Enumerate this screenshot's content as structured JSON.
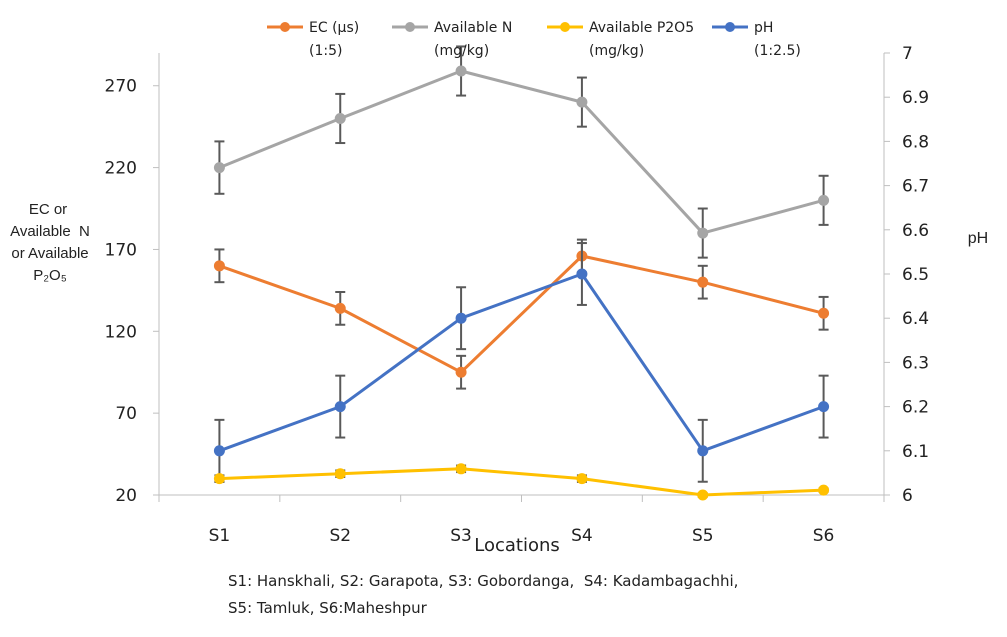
{
  "chart_data": {
    "type": "line",
    "categories": [
      "S1",
      "S2",
      "S3",
      "S4",
      "S5",
      "S6"
    ],
    "xlabel": "Locations",
    "ylabel_lines": [
      "EC or",
      "Available  N",
      "or Available",
      "P₂O₅"
    ],
    "y2label": "pH",
    "ylim": [
      20,
      290
    ],
    "yticks": [
      20,
      70,
      120,
      170,
      220,
      270
    ],
    "y2lim": [
      6,
      7
    ],
    "y2ticks": [
      "6",
      "6.1",
      "6.2",
      "6.3",
      "6.4",
      "6.5",
      "6.6",
      "6.7",
      "6.8",
      "6.9",
      "7"
    ],
    "grid": false,
    "legend_position": "top",
    "series": [
      {
        "name": "EC (µs)",
        "name_line2": "(1:5)",
        "axis": "left",
        "color": "#ED7D31",
        "values": [
          160,
          134,
          95,
          166,
          150,
          131
        ],
        "errors": [
          10,
          10,
          10,
          10,
          10,
          10
        ]
      },
      {
        "name": "Available N",
        "name_line2": "(mg/kg)",
        "axis": "left",
        "color": "#A5A5A5",
        "values": [
          220,
          250,
          279,
          260,
          180,
          200
        ],
        "errors": [
          16,
          15,
          15,
          15,
          15,
          15
        ]
      },
      {
        "name": "Available P2O5",
        "name_line2": "(mg/kg)",
        "axis": "left",
        "color": "#FFC000",
        "values": [
          30,
          33,
          36,
          30,
          20,
          23
        ],
        "errors": [
          2,
          2,
          2,
          2,
          1,
          1
        ]
      },
      {
        "name": "pH",
        "name_line2": "(1:2.5)",
        "axis": "right",
        "color": "#4472C4",
        "values": [
          6.1,
          6.2,
          6.4,
          6.5,
          6.1,
          6.2
        ],
        "errors": [
          0.07,
          0.07,
          0.07,
          0.07,
          0.07,
          0.07
        ]
      }
    ],
    "footnote_lines": [
      "S1: Hanskhali, S2: Garapota, S3: Gobordanga,  S4: Kadambagachhi,",
      "S5: Tamluk, S6:Maheshpur"
    ]
  }
}
